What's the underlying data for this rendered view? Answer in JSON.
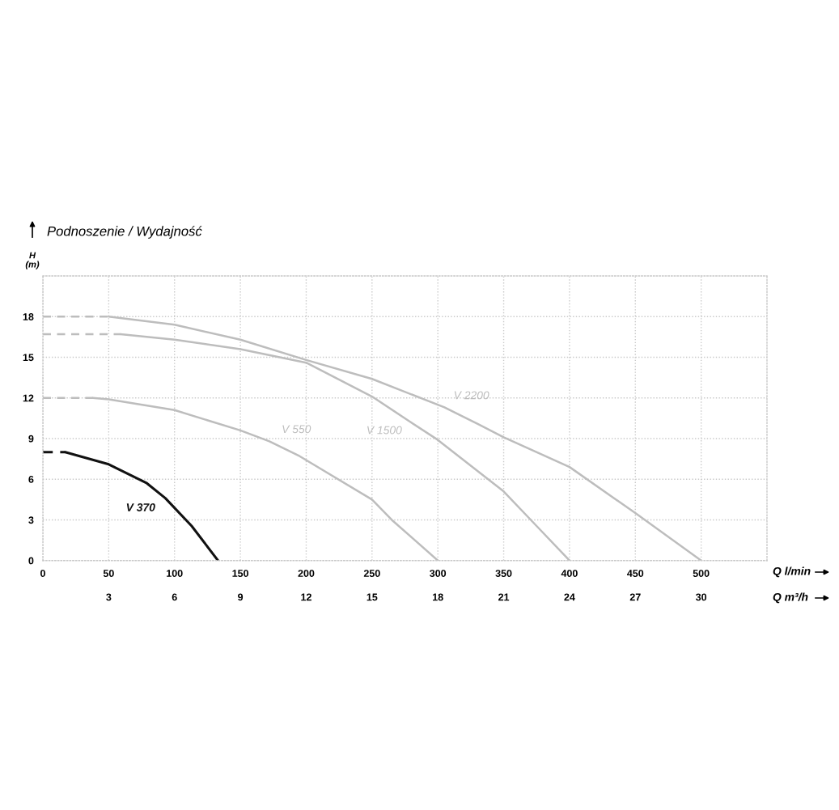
{
  "chart_data": {
    "type": "line",
    "title": "Podnoszenie / Wydajność",
    "ylabel": "H\n(m)",
    "xlabel": "Q l/min",
    "x2label": "Q m³/h",
    "xlim": [
      0,
      550
    ],
    "xticks": [
      0,
      50,
      100,
      150,
      200,
      250,
      300,
      350,
      400,
      450,
      500
    ],
    "x2lim": [
      0,
      33
    ],
    "x2ticks": [
      3,
      6,
      9,
      12,
      15,
      18,
      21,
      24,
      27,
      30
    ],
    "ylim": [
      0,
      21
    ],
    "yticks": [
      0,
      3,
      6,
      9,
      12,
      15,
      18
    ],
    "grid": true,
    "legend": false,
    "marker": "none",
    "series": [
      {
        "name": "V 370",
        "color": "#111111",
        "line_style": "solid",
        "x": [
          17,
          50,
          79,
          93,
          113,
          133
        ],
        "values": [
          8,
          7.1,
          5.7,
          4.6,
          2.55,
          0
        ]
      },
      {
        "color": "#111111",
        "line_style": "dashed",
        "x": [
          0,
          17
        ],
        "values": [
          8,
          8
        ]
      },
      {
        "name": "V 550",
        "color": "#bdbdbd",
        "line_style": "solid",
        "x": [
          38,
          50,
          100,
          150,
          172,
          195,
          250,
          265,
          300
        ],
        "values": [
          12,
          11.9,
          11.1,
          9.6,
          8.8,
          7.7,
          4.5,
          3.0,
          0
        ]
      },
      {
        "color": "#bdbdbd",
        "line_style": "dashed",
        "x": [
          0,
          38
        ],
        "values": [
          12,
          12
        ]
      },
      {
        "name": "V 1500",
        "color": "#bdbdbd",
        "line_style": "solid",
        "x": [
          59,
          100,
          150,
          200,
          250,
          278,
          300,
          350,
          375,
          400
        ],
        "values": [
          16.7,
          16.3,
          15.6,
          14.6,
          12.1,
          10.3,
          8.9,
          5.1,
          2.55,
          0
        ]
      },
      {
        "color": "#bdbdbd",
        "line_style": "dashed",
        "x": [
          0,
          59
        ],
        "values": [
          16.7,
          16.7
        ]
      },
      {
        "name": "V 2200",
        "color": "#bdbdbd",
        "line_style": "solid",
        "x": [
          50,
          100,
          150,
          200,
          250,
          305,
          330,
          350,
          400,
          450,
          500
        ],
        "values": [
          18,
          17.4,
          16.3,
          14.8,
          13.4,
          11.3,
          10.1,
          9.1,
          6.9,
          3.5,
          0
        ]
      },
      {
        "color": "#bdbdbd",
        "line_style": "dashed",
        "x": [
          0,
          50
        ],
        "values": [
          18,
          18
        ]
      }
    ]
  }
}
